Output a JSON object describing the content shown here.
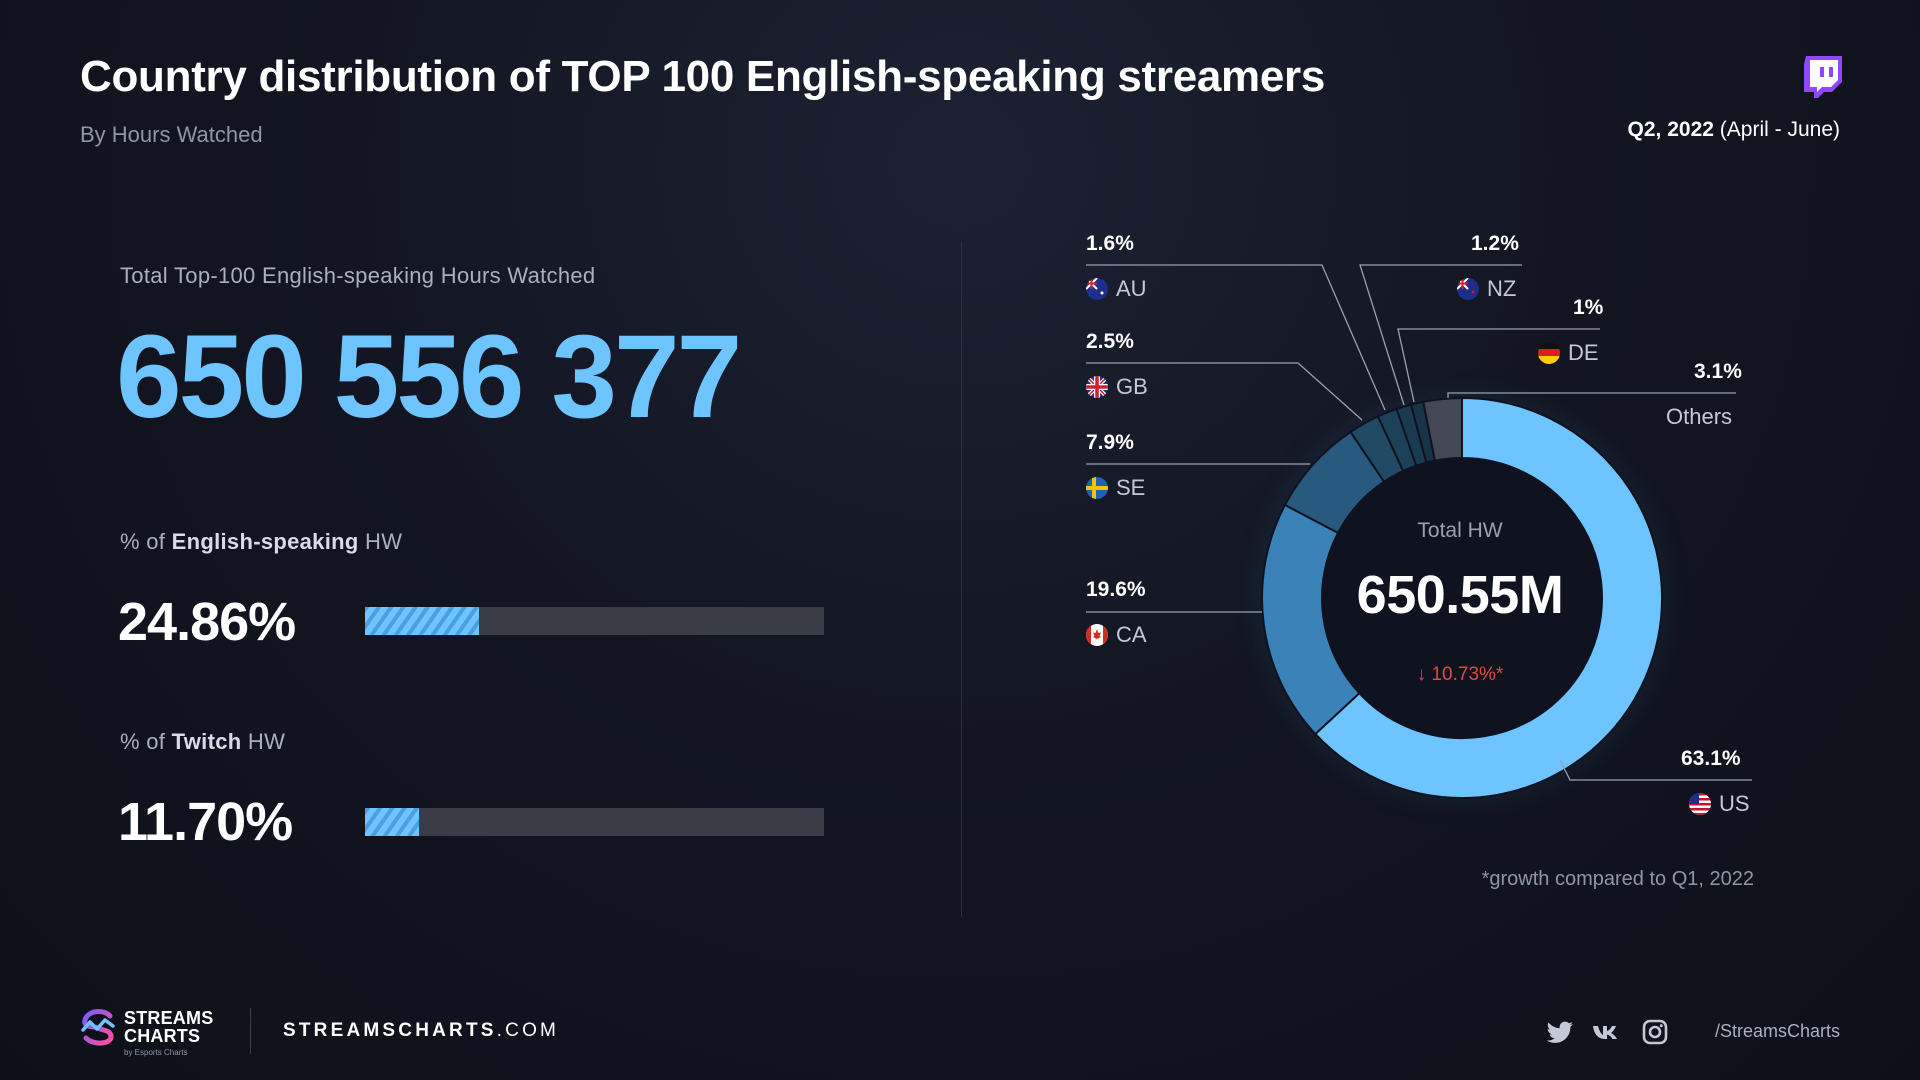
{
  "header": {
    "title": "Country distribution of TOP 100 English-speaking streamers",
    "subtitle": "By Hours Watched",
    "period_bold": "Q2, 2022",
    "period_rest": "(April - June)",
    "platform_icon": "twitch-icon"
  },
  "stats": {
    "total_label": "Total Top-100 English-speaking Hours Watched",
    "total_value": "650 556 377",
    "metrics": [
      {
        "label_prefix": "% of ",
        "label_bold": "English-speaking",
        "label_suffix": " HW",
        "value": "24.86%",
        "percent": 24.86
      },
      {
        "label_prefix": "% of ",
        "label_bold": "Twitch",
        "label_suffix": " HW",
        "value": "11.70%",
        "percent": 11.7
      }
    ]
  },
  "chart_data": {
    "type": "pie",
    "style": "donut",
    "title": "Country distribution of TOP 100 English-speaking streamers",
    "center_label": "Total HW",
    "center_value": "650.55M",
    "center_growth": "↓ 10.73%*",
    "slices": [
      {
        "code": "US",
        "label": "63.1%",
        "value": 63.1,
        "color": "#6ec4ff"
      },
      {
        "code": "CA",
        "label": "19.6%",
        "value": 19.6,
        "color": "#3a82b8"
      },
      {
        "code": "SE",
        "label": "7.9%",
        "value": 7.9,
        "color": "#275a7e"
      },
      {
        "code": "GB",
        "label": "2.5%",
        "value": 2.5,
        "color": "#214a64"
      },
      {
        "code": "AU",
        "label": "1.6%",
        "value": 1.6,
        "color": "#1d4159"
      },
      {
        "code": "NZ",
        "label": "1.2%",
        "value": 1.2,
        "color": "#1a3a50"
      },
      {
        "code": "DE",
        "label": "1%",
        "value": 1.0,
        "color": "#183449"
      },
      {
        "code": "Others",
        "label": "3.1%",
        "value": 3.1,
        "color": "#444852"
      }
    ],
    "footnote": "*growth compared to Q1, 2022"
  },
  "footer": {
    "brand_line1": "STREAMS",
    "brand_line2": "CHARTS",
    "brand_sub": "by Esports Charts",
    "site_bold": "STREAMSCHARTS",
    "site_rest": ".COM",
    "social_icons": [
      "twitter-icon",
      "vk-icon",
      "instagram-icon"
    ],
    "handle": "/StreamsCharts"
  },
  "colors": {
    "accent": "#6ec4ff",
    "decline": "#e2483d",
    "track": "#3a3d46"
  }
}
